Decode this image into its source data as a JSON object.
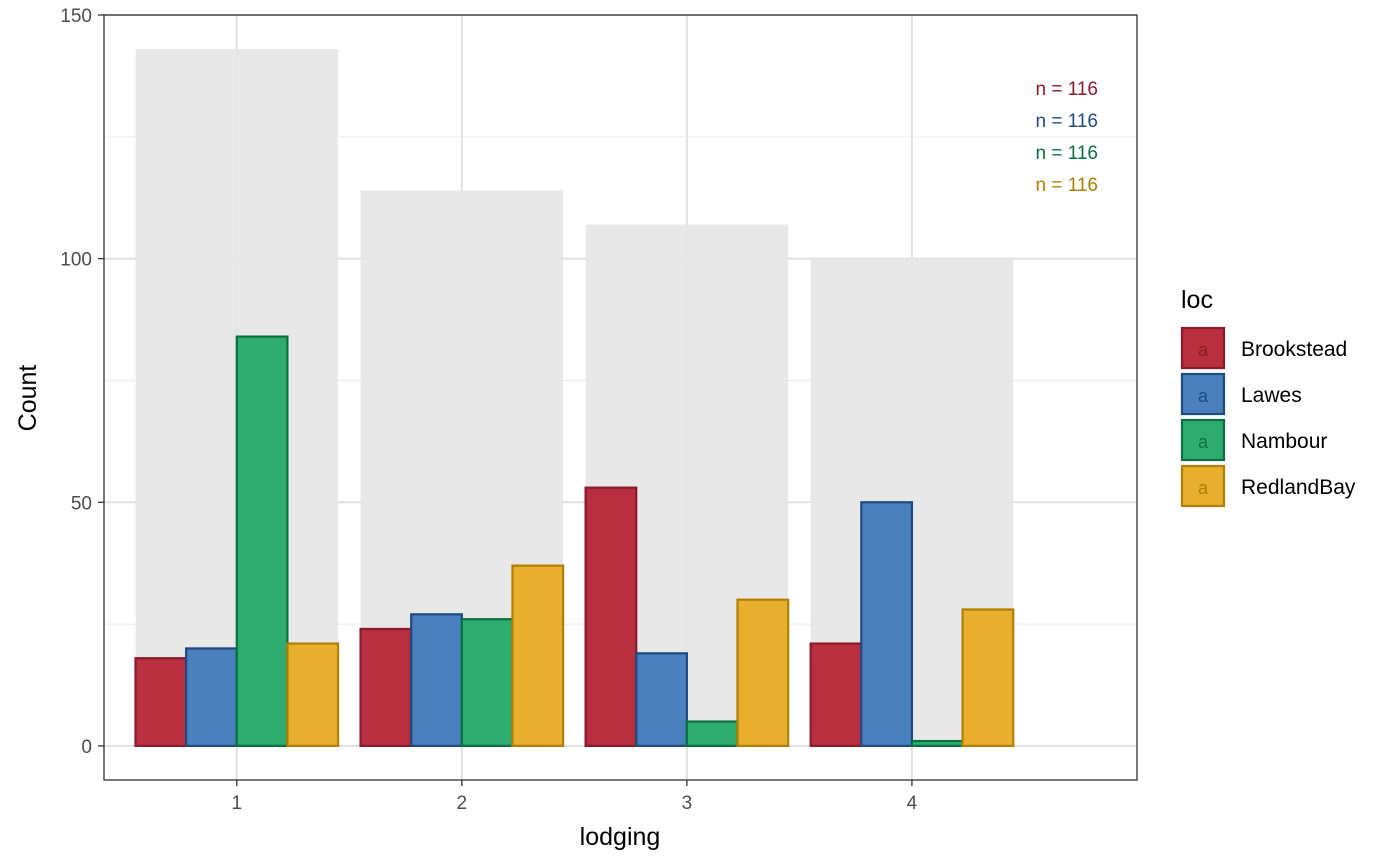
{
  "chart_data": {
    "type": "bar",
    "xlabel": "lodging",
    "ylabel": "Count",
    "ylim": [
      -7,
      150
    ],
    "y_ticks": [
      0,
      50,
      100,
      150
    ],
    "categories": [
      "1",
      "2",
      "3",
      "4"
    ],
    "x_range": [
      0.41,
      5.0
    ],
    "grid": true,
    "background_totals": [
      143,
      114,
      107,
      100
    ],
    "background_color": "#e5e5e5",
    "series": [
      {
        "name": "Brookstead",
        "values": [
          18,
          24,
          53,
          21
        ],
        "fill": "#b8303f",
        "stroke": "#8b1a2b"
      },
      {
        "name": "Lawes",
        "values": [
          20,
          27,
          19,
          50
        ],
        "fill": "#4a81bd",
        "stroke": "#1f4a80"
      },
      {
        "name": "Nambour",
        "values": [
          84,
          26,
          5,
          1
        ],
        "fill": "#2ead6e",
        "stroke": "#0a7040"
      },
      {
        "name": "RedlandBay",
        "values": [
          21,
          37,
          30,
          28
        ],
        "fill": "#e8ae2e",
        "stroke": "#b07f00"
      }
    ],
    "legend": {
      "title": "loc",
      "placement": "right",
      "key_letter": "a"
    },
    "annotations": [
      {
        "text": "n = 116",
        "color": "#8b1a2b"
      },
      {
        "text": "n = 116",
        "color": "#1f4a80"
      },
      {
        "text": "n = 116",
        "color": "#0a7040"
      },
      {
        "text": "n = 116",
        "color": "#b07f00"
      }
    ]
  }
}
